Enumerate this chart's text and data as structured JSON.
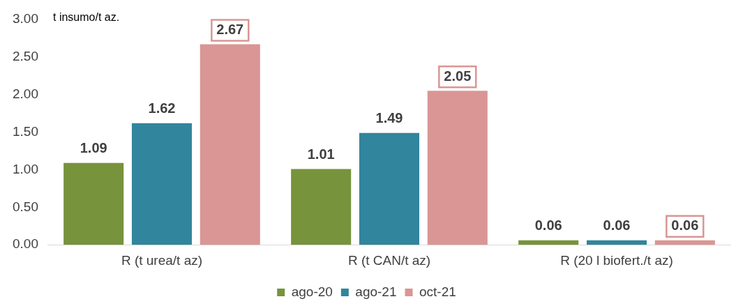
{
  "chart_data": {
    "type": "bar",
    "ylabel": "t insumo/t az.",
    "categories": [
      "R (t urea/t az)",
      "R (t CAN/t az)",
      "R (20 l biofert./t az)"
    ],
    "series": [
      {
        "name": "ago-20",
        "color": "#77933c",
        "values": [
          1.09,
          1.01,
          0.06
        ]
      },
      {
        "name": "ago-21",
        "color": "#31859c",
        "values": [
          1.62,
          1.49,
          0.06
        ]
      },
      {
        "name": "oct-21",
        "color": "#d99694",
        "values": [
          2.67,
          2.05,
          0.06
        ]
      }
    ],
    "ylim": [
      0,
      3
    ],
    "yticks": [
      {
        "value": 0,
        "label": "0.00"
      },
      {
        "value": 0.5,
        "label": "0.50"
      },
      {
        "value": 1,
        "label": "1.00"
      },
      {
        "value": 1.5,
        "label": "1.50"
      },
      {
        "value": 2,
        "label": "2.00"
      },
      {
        "value": 2.5,
        "label": "2.50"
      },
      {
        "value": 3,
        "label": "3.00"
      }
    ],
    "grid": false,
    "legend": "bottom",
    "data_labels": true
  }
}
